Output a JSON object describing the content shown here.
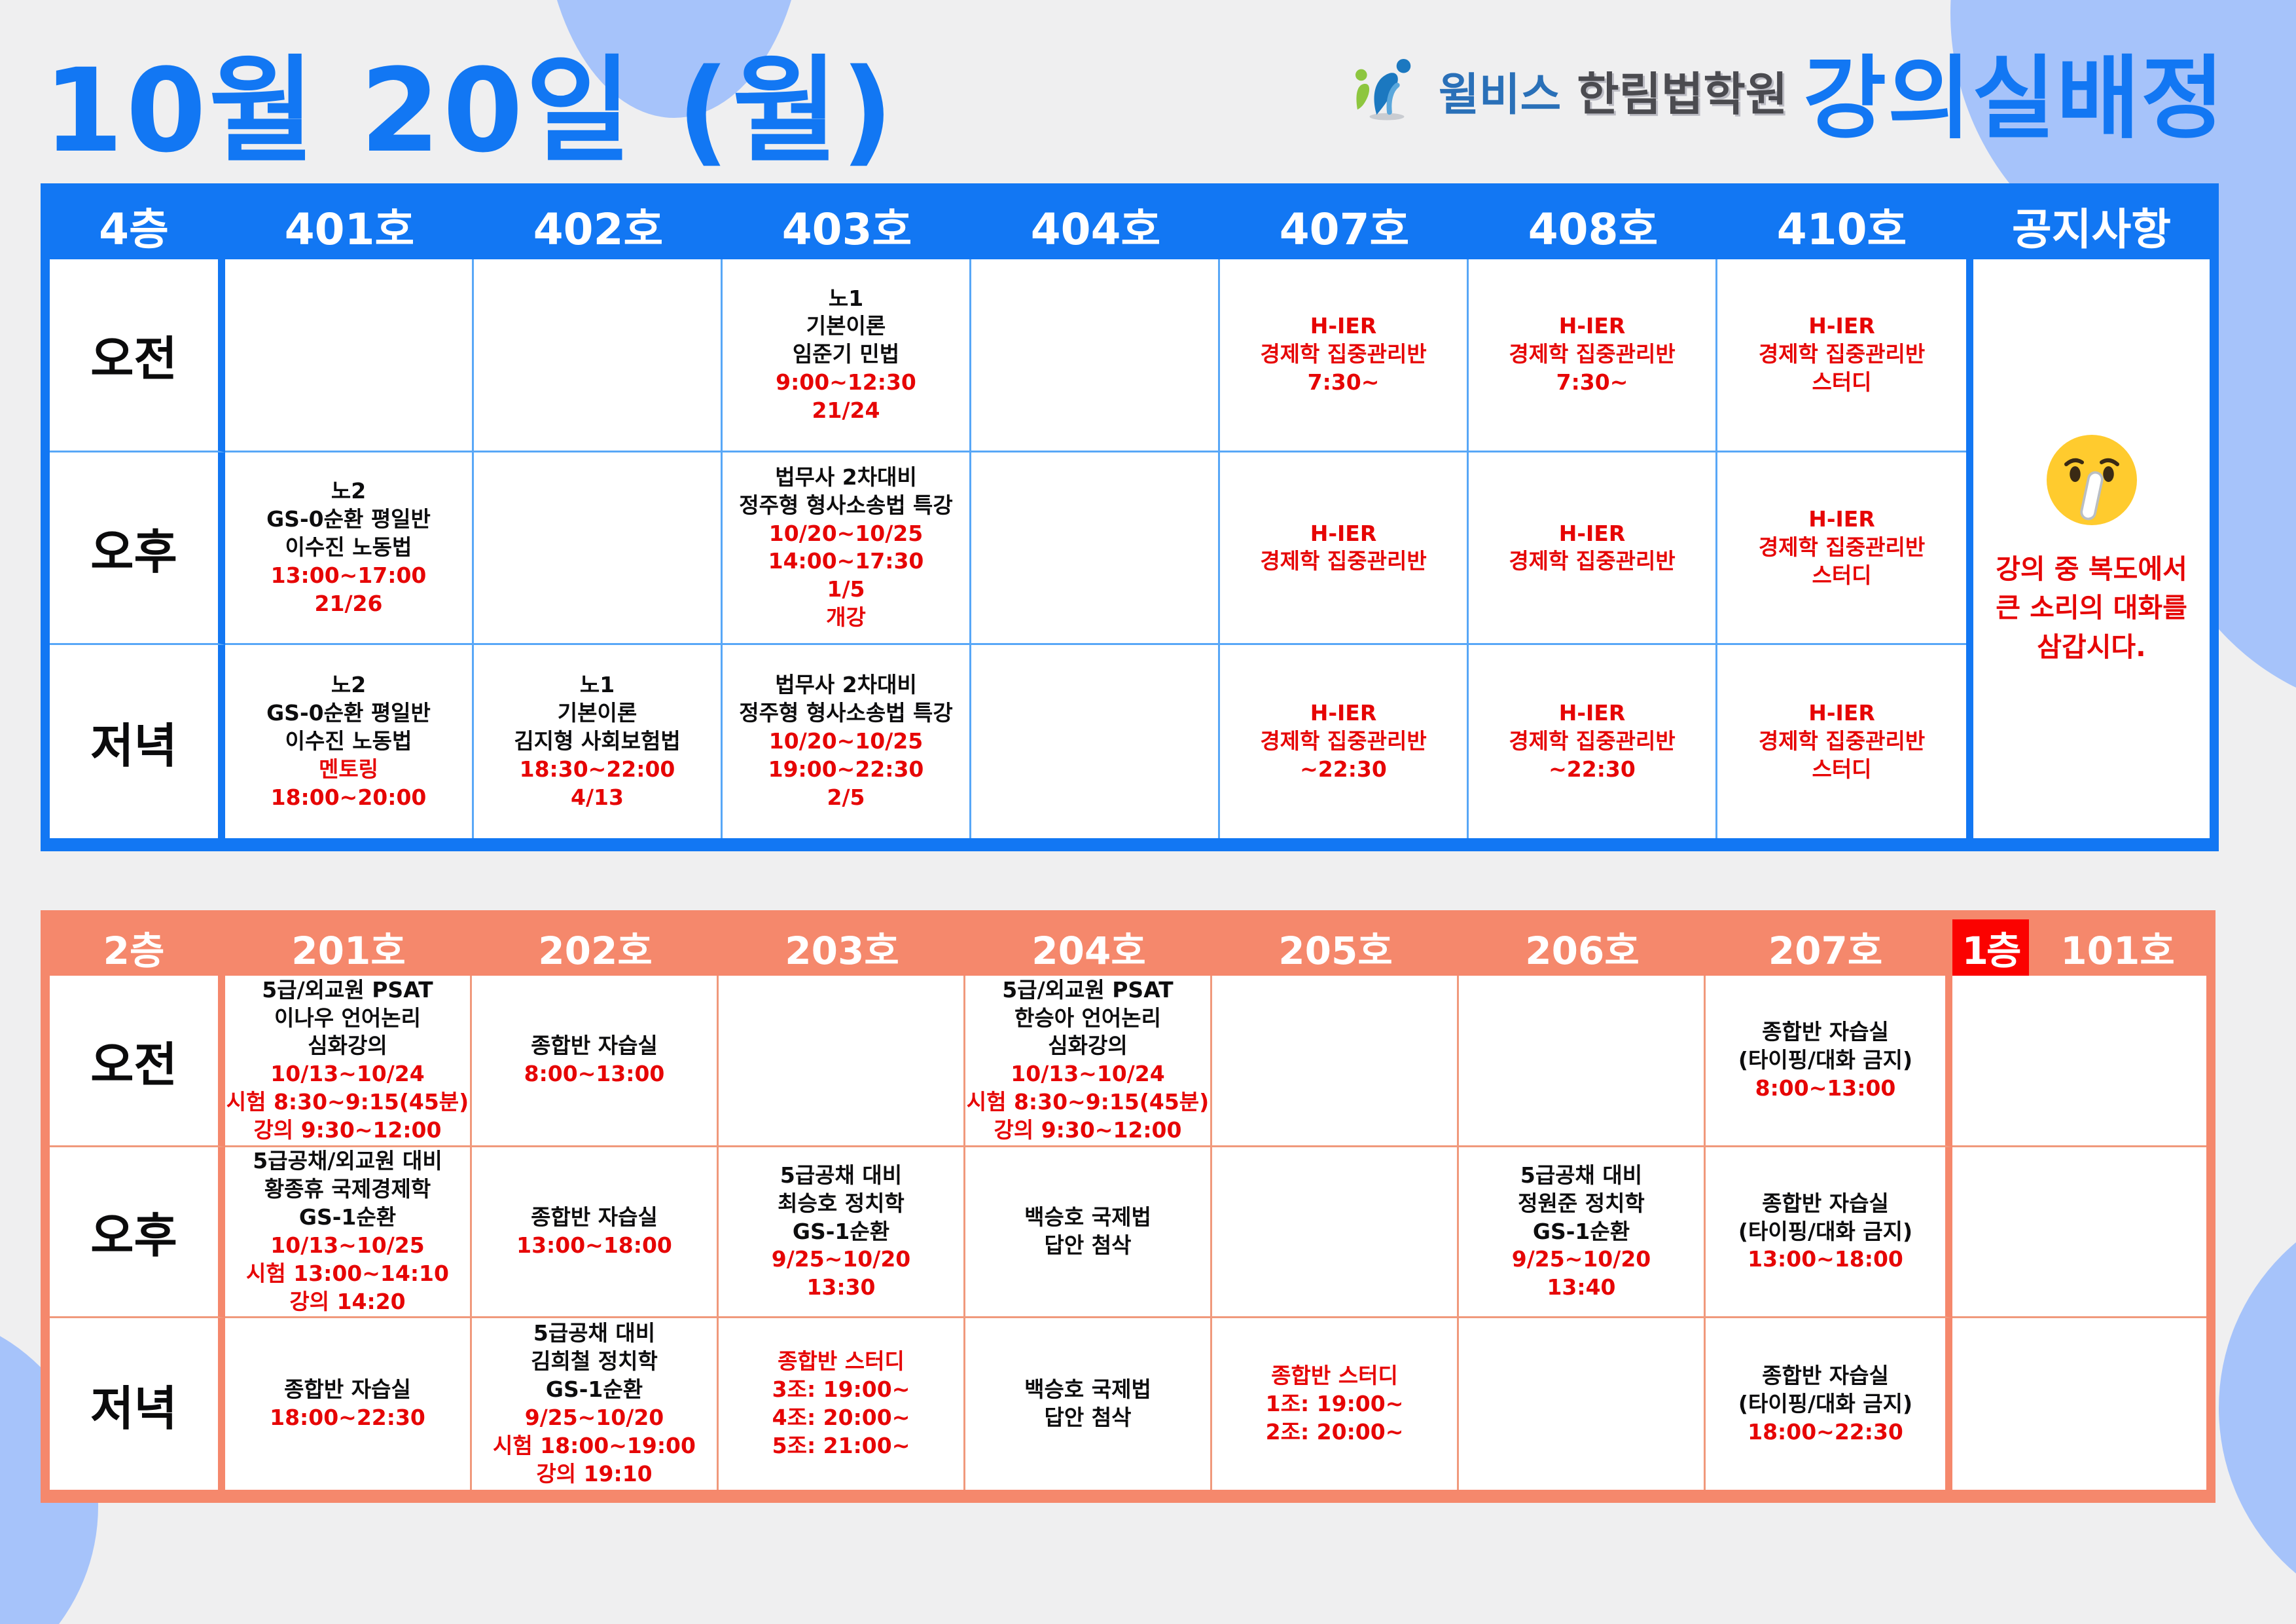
{
  "title": "10월 20일 (월)",
  "logo": {
    "icon_name": "willbes-people-logo",
    "brand": "윌비스",
    "academy": "한림법학원",
    "heading": "강의실배정"
  },
  "colors": {
    "blue": "#1277f3",
    "salmon": "#f5886c",
    "red_text": "#e60505",
    "floor1_red": "#fb0200",
    "blob_light_blue": "#a6c3fa",
    "background": "#efeff0"
  },
  "floor4": {
    "floor_label": "4층",
    "rooms": [
      "401호",
      "402호",
      "403호",
      "404호",
      "407호",
      "408호",
      "410호"
    ],
    "notice_label": "공지사항",
    "row_labels": [
      "오전",
      "오후",
      "저녁"
    ],
    "cells": [
      [
        {},
        {},
        {
          "black": [
            "노1",
            "기본이론",
            "임준기 민법"
          ],
          "red": [
            "9:00~12:30",
            "21/24"
          ]
        },
        {},
        {
          "red": [
            "H-IER",
            "경제학 집중관리반",
            "7:30~"
          ]
        },
        {
          "red": [
            "H-IER",
            "경제학 집중관리반",
            "7:30~"
          ]
        },
        {
          "red": [
            "H-IER",
            "경제학 집중관리반",
            "스터디"
          ]
        }
      ],
      [
        {
          "black": [
            "노2",
            "GS-0순환 평일반",
            "이수진 노동법"
          ],
          "red": [
            "13:00~17:00",
            "21/26"
          ]
        },
        {},
        {
          "black": [
            "법무사 2차대비",
            "정주형 형사소송법 특강"
          ],
          "red": [
            "10/20~10/25",
            "14:00~17:30",
            "1/5",
            "개강"
          ]
        },
        {},
        {
          "red": [
            "H-IER",
            "경제학 집중관리반"
          ]
        },
        {
          "red": [
            "H-IER",
            "경제학 집중관리반"
          ]
        },
        {
          "red": [
            "H-IER",
            "경제학 집중관리반",
            "스터디"
          ]
        }
      ],
      [
        {
          "black": [
            "노2",
            "GS-0순환 평일반",
            "이수진 노동법"
          ],
          "red": [
            "멘토링",
            "18:00~20:00"
          ]
        },
        {
          "black": [
            "노1",
            "기본이론",
            "김지형 사회보험법"
          ],
          "red": [
            "18:30~22:00",
            "4/13"
          ]
        },
        {
          "black": [
            "법무사 2차대비",
            "정주형 형사소송법 특강"
          ],
          "red": [
            "10/20~10/25",
            "19:00~22:30",
            "2/5"
          ]
        },
        {},
        {
          "red": [
            "H-IER",
            "경제학 집중관리반",
            "~22:30"
          ]
        },
        {
          "red": [
            "H-IER",
            "경제학 집중관리반",
            "~22:30"
          ]
        },
        {
          "red": [
            "H-IER",
            "경제학 집중관리반",
            "스터디"
          ]
        }
      ]
    ],
    "notice": {
      "emoji": "🤫",
      "emoji_name": "shushing-face",
      "lines": [
        "강의 중 복도에서",
        "큰 소리의 대화를",
        "삼갑시다."
      ]
    }
  },
  "floor2": {
    "floor_label": "2층",
    "rooms": [
      "201호",
      "202호",
      "203호",
      "204호",
      "205호",
      "206호",
      "207호"
    ],
    "floor1_label": "1층",
    "floor1_room": "101호",
    "row_labels": [
      "오전",
      "오후",
      "저녁"
    ],
    "cells": [
      [
        {
          "black": [
            "5급/외교원 PSAT",
            "이나우 언어논리",
            "심화강의"
          ],
          "red": [
            "10/13~10/24",
            "시험 8:30~9:15(45분)",
            "강의 9:30~12:00"
          ]
        },
        {
          "black": [
            "종합반 자습실"
          ],
          "red": [
            "8:00~13:00"
          ]
        },
        {},
        {
          "black": [
            "5급/외교원 PSAT",
            "한승아 언어논리",
            "심화강의"
          ],
          "red": [
            "10/13~10/24",
            "시험 8:30~9:15(45분)",
            "강의 9:30~12:00"
          ]
        },
        {},
        {},
        {
          "black": [
            "종합반 자습실",
            "(타이핑/대화 금지)"
          ],
          "red": [
            "8:00~13:00"
          ]
        },
        {}
      ],
      [
        {
          "black": [
            "5급공채/외교원 대비",
            "황종휴 국제경제학",
            "GS-1순환"
          ],
          "red": [
            "10/13~10/25",
            "시험 13:00~14:10",
            "강의 14:20"
          ]
        },
        {
          "black": [
            "종합반 자습실"
          ],
          "red": [
            "13:00~18:00"
          ]
        },
        {
          "black": [
            "5급공채 대비",
            "최승호 정치학",
            "GS-1순환"
          ],
          "red": [
            "9/25~10/20",
            "13:30"
          ]
        },
        {
          "black": [
            "백승호 국제법",
            "답안 첨삭"
          ]
        },
        {},
        {
          "black": [
            "5급공채 대비",
            "정원준 정치학",
            "GS-1순환"
          ],
          "red": [
            "9/25~10/20",
            "13:40"
          ]
        },
        {
          "black": [
            "종합반 자습실",
            "(타이핑/대화 금지)"
          ],
          "red": [
            "13:00~18:00"
          ]
        },
        {}
      ],
      [
        {
          "black": [
            "종합반 자습실"
          ],
          "red": [
            "18:00~22:30"
          ]
        },
        {
          "black": [
            "5급공채 대비",
            "김희철 정치학",
            "GS-1순환"
          ],
          "red": [
            "9/25~10/20",
            "시험 18:00~19:00",
            "강의 19:10"
          ]
        },
        {
          "red": [
            "종합반 스터디",
            "3조: 19:00~",
            "4조: 20:00~",
            "5조: 21:00~"
          ]
        },
        {
          "black": [
            "백승호 국제법",
            "답안 첨삭"
          ]
        },
        {
          "red": [
            "종합반 스터디",
            "1조: 19:00~",
            "2조: 20:00~"
          ]
        },
        {},
        {
          "black": [
            "종합반 자습실",
            "(타이핑/대화 금지)"
          ],
          "red": [
            "18:00~22:30"
          ]
        },
        {}
      ]
    ]
  }
}
